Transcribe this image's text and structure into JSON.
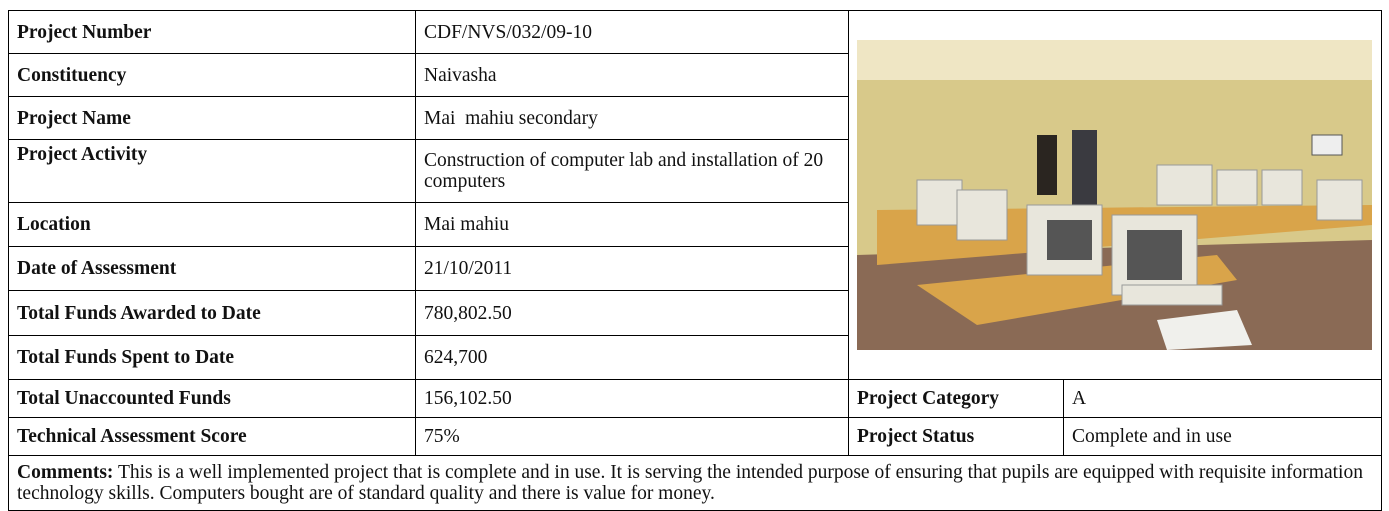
{
  "table": {
    "rows": [
      [
        "Project Number",
        "CDF/NVS/032/09-10"
      ],
      [
        "Constituency",
        "Naivasha"
      ],
      [
        "Project Name",
        "Mai  mahiu secondary"
      ],
      [
        "Project Activity",
        "Construction of computer lab and installation of 20 computers"
      ],
      [
        "Location",
        "Mai mahiu"
      ],
      [
        "Date of Assessment",
        "21/10/2011"
      ],
      [
        "Total Funds Awarded to Date",
        "780,802.50"
      ],
      [
        "Total Funds Spent to Date",
        "624,700"
      ],
      [
        "Total Unaccounted Funds",
        "156,102.50"
      ],
      [
        "Technical Assessment Score",
        "75%"
      ]
    ],
    "side": [
      [
        "Project Category",
        "A"
      ],
      [
        "Project Status",
        "Complete and in use"
      ]
    ]
  },
  "comments": {
    "label": "Comments:",
    "text": "This is a well implemented project that is complete and in use. It is serving the intended purpose of ensuring that pupils are equipped with requisite information technology skills. Computers bought are of standard quality and there is value for money."
  }
}
